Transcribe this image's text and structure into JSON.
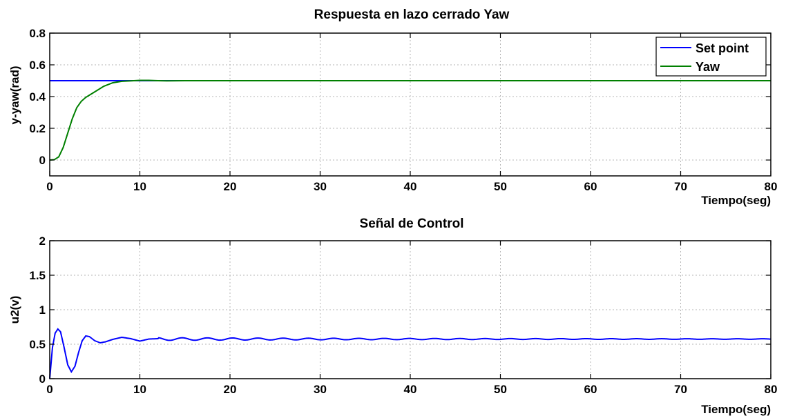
{
  "chart_data": [
    {
      "type": "line",
      "title": "Respuesta en lazo cerrado Yaw",
      "xlabel": "Tiempo(seg)",
      "ylabel": "y-yaw(rad)",
      "xlim": [
        0,
        80
      ],
      "ylim": [
        -0.1,
        0.8
      ],
      "xticks": [
        "0",
        "10",
        "20",
        "30",
        "40",
        "50",
        "60",
        "70",
        "80"
      ],
      "yticks": [
        "0",
        "0.2",
        "0.4",
        "0.6",
        "0.8"
      ],
      "grid": true,
      "legend": "top-right",
      "series": [
        {
          "name": "Set point",
          "color": "#0000ff",
          "points": [
            [
              0,
              0.5
            ],
            [
              80,
              0.5
            ]
          ]
        },
        {
          "name": "Yaw",
          "color": "#008000",
          "points": [
            [
              0,
              0.0
            ],
            [
              0.5,
              0.002
            ],
            [
              1.0,
              0.02
            ],
            [
              1.5,
              0.08
            ],
            [
              2.0,
              0.17
            ],
            [
              2.5,
              0.26
            ],
            [
              3.0,
              0.33
            ],
            [
              3.5,
              0.37
            ],
            [
              4.0,
              0.395
            ],
            [
              5.0,
              0.43
            ],
            [
              6.0,
              0.465
            ],
            [
              7.0,
              0.487
            ],
            [
              8.0,
              0.496
            ],
            [
              9.0,
              0.499
            ],
            [
              10.0,
              0.502
            ],
            [
              11.0,
              0.502
            ],
            [
              12.0,
              0.5
            ],
            [
              13.0,
              0.499
            ],
            [
              15.0,
              0.5
            ],
            [
              20.0,
              0.5
            ],
            [
              80.0,
              0.5
            ]
          ]
        }
      ]
    },
    {
      "type": "line",
      "title": "Señal de Control",
      "xlabel": "Tiempo(seg)",
      "ylabel": "u2(v)",
      "xlim": [
        0,
        80
      ],
      "ylim": [
        0,
        2
      ],
      "xticks": [
        "0",
        "10",
        "20",
        "30",
        "40",
        "50",
        "60",
        "70",
        "80"
      ],
      "yticks": [
        "0",
        "0.5",
        "1",
        "1.5",
        "2"
      ],
      "grid": true,
      "series": [
        {
          "name": "",
          "color": "#0000ff",
          "oscillation_period": 2.8,
          "points": [
            [
              0,
              0.0
            ],
            [
              0.3,
              0.45
            ],
            [
              0.6,
              0.66
            ],
            [
              0.9,
              0.72
            ],
            [
              1.2,
              0.68
            ],
            [
              1.6,
              0.45
            ],
            [
              2.0,
              0.2
            ],
            [
              2.4,
              0.1
            ],
            [
              2.8,
              0.18
            ],
            [
              3.2,
              0.38
            ],
            [
              3.6,
              0.55
            ],
            [
              4.0,
              0.62
            ],
            [
              4.4,
              0.61
            ],
            [
              5.0,
              0.55
            ],
            [
              5.6,
              0.52
            ],
            [
              6.2,
              0.535
            ],
            [
              7.0,
              0.57
            ],
            [
              8.0,
              0.6
            ],
            [
              9.0,
              0.58
            ],
            [
              10.0,
              0.545
            ],
            [
              11.0,
              0.575
            ],
            [
              12.0,
              0.58
            ],
            [
              15.0,
              0.57
            ],
            [
              20.0,
              0.575
            ],
            [
              80.0,
              0.575
            ]
          ]
        }
      ]
    }
  ]
}
